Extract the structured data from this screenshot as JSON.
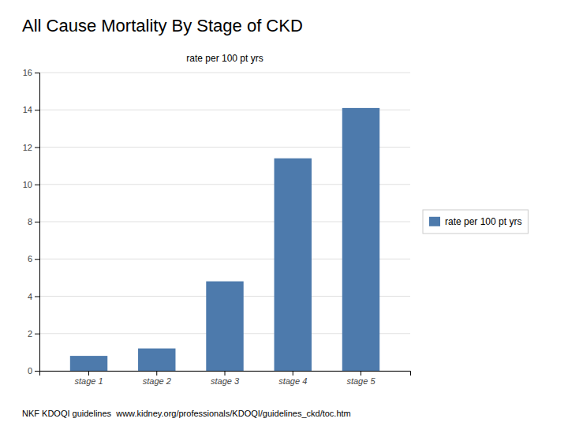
{
  "chart_data": {
    "type": "bar",
    "title": "All Cause Mortality By Stage of CKD",
    "subtitle": "rate per 100 pt yrs",
    "categories": [
      "stage 1",
      "stage 2",
      "stage 3",
      "stage 4",
      "stage 5"
    ],
    "series": [
      {
        "name": "rate per 100 pt yrs",
        "color": "#4d7aac",
        "values": [
          0.8,
          1.2,
          4.8,
          11.4,
          14.1
        ]
      }
    ],
    "ylim": [
      0,
      16
    ],
    "yticks": [
      0,
      2,
      4,
      6,
      8,
      10,
      12,
      14,
      16
    ],
    "grid": true,
    "legend": "right",
    "annotations": [
      "NKF KDOQI guidelines  www.kidney.org/professionals/KDOQI/guidelines_ckd/toc.htm"
    ]
  }
}
